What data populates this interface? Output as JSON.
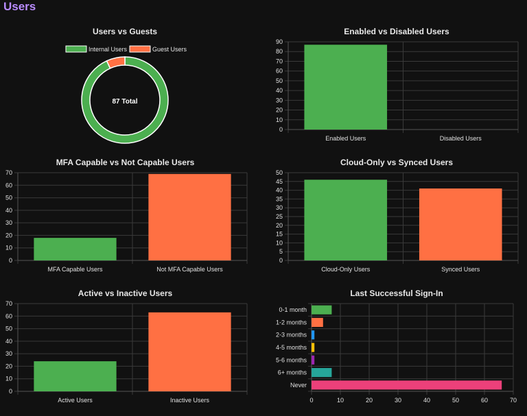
{
  "page": {
    "title": "Users"
  },
  "chart_data": [
    {
      "id": "users-vs-guests",
      "type": "pie",
      "title": "Users vs Guests",
      "labels": [
        "Internal Users",
        "Guest Users"
      ],
      "values": [
        81,
        6
      ],
      "colors": [
        "#4caf50",
        "#ff7043"
      ],
      "center_text": "87 Total",
      "legend": "top"
    },
    {
      "id": "enabled-vs-disabled",
      "type": "bar",
      "title": "Enabled vs Disabled Users",
      "categories": [
        "Enabled Users",
        "Disabled Users"
      ],
      "values": [
        87,
        0
      ],
      "colors": [
        "#4caf50",
        "#ff7043"
      ],
      "ylim": [
        0,
        90
      ],
      "yticks": [
        0,
        10,
        20,
        30,
        40,
        50,
        60,
        70,
        80,
        90
      ]
    },
    {
      "id": "mfa-capable",
      "type": "bar",
      "title": "MFA Capable vs Not Capable Users",
      "categories": [
        "MFA Capable Users",
        "Not MFA Capable Users"
      ],
      "values": [
        18,
        69
      ],
      "colors": [
        "#4caf50",
        "#ff7043"
      ],
      "ylim": [
        0,
        70
      ],
      "yticks": [
        0,
        10,
        20,
        30,
        40,
        50,
        60,
        70
      ]
    },
    {
      "id": "cloud-vs-synced",
      "type": "bar",
      "title": "Cloud-Only vs Synced Users",
      "categories": [
        "Cloud-Only Users",
        "Synced Users"
      ],
      "values": [
        46,
        41
      ],
      "colors": [
        "#4caf50",
        "#ff7043"
      ],
      "ylim": [
        0,
        50
      ],
      "yticks": [
        0,
        5,
        10,
        15,
        20,
        25,
        30,
        35,
        40,
        45,
        50
      ]
    },
    {
      "id": "active-vs-inactive",
      "type": "bar",
      "title": "Active vs Inactive Users",
      "categories": [
        "Active Users",
        "Inactive Users"
      ],
      "values": [
        24,
        63
      ],
      "colors": [
        "#4caf50",
        "#ff7043"
      ],
      "ylim": [
        0,
        70
      ],
      "yticks": [
        0,
        10,
        20,
        30,
        40,
        50,
        60,
        70
      ]
    },
    {
      "id": "last-sign-in",
      "type": "bar",
      "orientation": "horizontal",
      "title": "Last Successful Sign-In",
      "categories": [
        "0-1 month",
        "1-2 months",
        "2-3 months",
        "4-5 months",
        "5-6 months",
        "6+ months",
        "Never"
      ],
      "values": [
        7,
        4,
        1,
        1,
        1,
        7,
        66
      ],
      "colors": [
        "#4caf50",
        "#ff7043",
        "#2196f3",
        "#ffc107",
        "#9c27b0",
        "#26a69a",
        "#ec407a"
      ],
      "xlim": [
        0,
        70
      ],
      "xticks": [
        0,
        10,
        20,
        30,
        40,
        50,
        60,
        70
      ]
    }
  ]
}
